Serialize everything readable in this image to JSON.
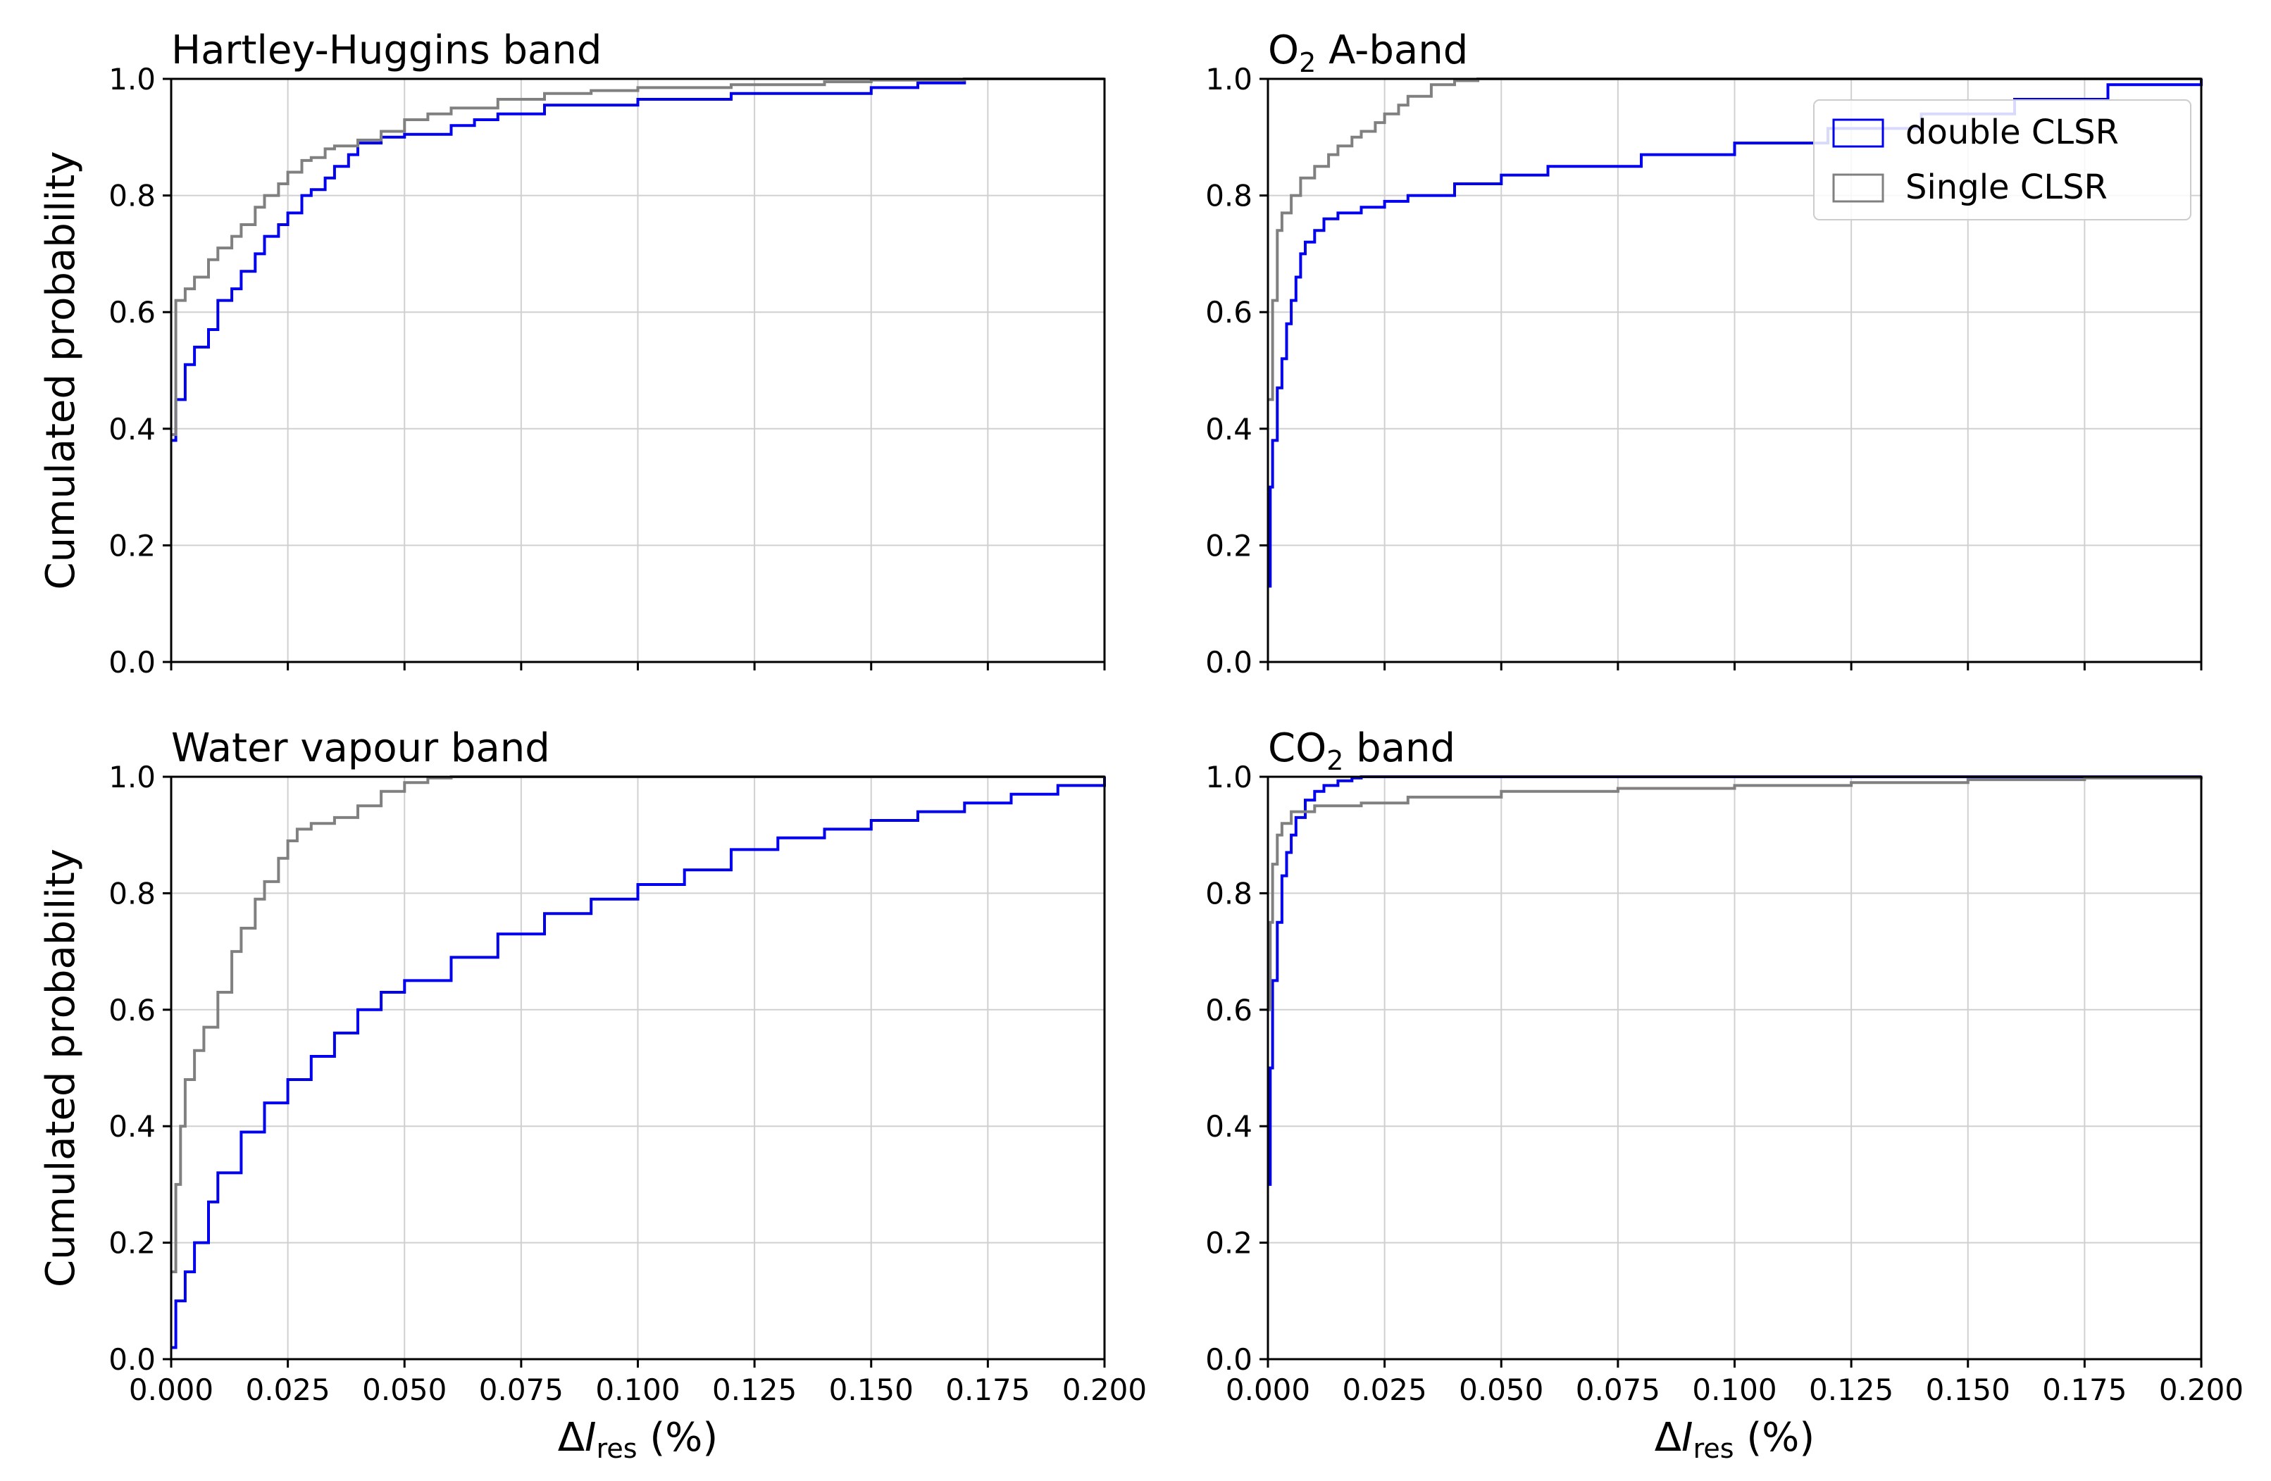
{
  "chart_data": [
    {
      "type": "line",
      "title_main": "Hartley-Huggins band",
      "title_sub": "",
      "title_rest": "",
      "xlabel": "",
      "ylabel": "Cumulated probability",
      "xlim": [
        0,
        0.2
      ],
      "ylim": [
        0,
        1
      ],
      "grid": true,
      "xticks": [
        "0.000",
        "0.025",
        "0.050",
        "0.075",
        "0.100",
        "0.125",
        "0.150",
        "0.175",
        "0.200"
      ],
      "yticks": [
        "0.0",
        "0.2",
        "0.4",
        "0.6",
        "0.8",
        "1.0"
      ],
      "series": [
        {
          "color": "#0000ee",
          "x": [
            0,
            0.001,
            0.003,
            0.005,
            0.008,
            0.01,
            0.013,
            0.015,
            0.018,
            0.02,
            0.023,
            0.025,
            0.028,
            0.03,
            0.033,
            0.035,
            0.038,
            0.04,
            0.045,
            0.05,
            0.06,
            0.065,
            0.07,
            0.08,
            0.1,
            0.12,
            0.15,
            0.16,
            0.17,
            0.2
          ],
          "y": [
            0.38,
            0.45,
            0.51,
            0.54,
            0.57,
            0.62,
            0.64,
            0.67,
            0.7,
            0.73,
            0.75,
            0.77,
            0.8,
            0.81,
            0.83,
            0.85,
            0.87,
            0.89,
            0.9,
            0.905,
            0.92,
            0.93,
            0.94,
            0.955,
            0.965,
            0.975,
            0.985,
            0.993,
            1.0,
            1.0
          ]
        },
        {
          "color": "#808080",
          "x": [
            0,
            0.001,
            0.003,
            0.005,
            0.008,
            0.01,
            0.013,
            0.015,
            0.018,
            0.02,
            0.023,
            0.025,
            0.028,
            0.03,
            0.033,
            0.035,
            0.04,
            0.045,
            0.05,
            0.055,
            0.06,
            0.07,
            0.08,
            0.09,
            0.1,
            0.12,
            0.14,
            0.15,
            0.17,
            0.2
          ],
          "y": [
            0.39,
            0.62,
            0.64,
            0.66,
            0.69,
            0.71,
            0.73,
            0.75,
            0.78,
            0.8,
            0.82,
            0.84,
            0.86,
            0.865,
            0.88,
            0.885,
            0.895,
            0.91,
            0.93,
            0.94,
            0.95,
            0.965,
            0.975,
            0.98,
            0.985,
            0.99,
            0.995,
            0.998,
            1.0,
            1.0
          ]
        }
      ]
    },
    {
      "type": "line",
      "title_main": "O",
      "title_sub": "2",
      "title_rest": " A-band",
      "xlabel": "",
      "ylabel": "",
      "xlim": [
        0,
        0.2
      ],
      "ylim": [
        0,
        1
      ],
      "grid": true,
      "legend": "top-right",
      "xticks": [
        "0.000",
        "0.025",
        "0.050",
        "0.075",
        "0.100",
        "0.125",
        "0.150",
        "0.175",
        "0.200"
      ],
      "yticks": [
        "0.0",
        "0.2",
        "0.4",
        "0.6",
        "0.8",
        "1.0"
      ],
      "series": [
        {
          "name": "double CLSR",
          "color": "#0000ee",
          "x": [
            0,
            0.0005,
            0.001,
            0.002,
            0.003,
            0.004,
            0.005,
            0.006,
            0.007,
            0.008,
            0.01,
            0.012,
            0.015,
            0.02,
            0.025,
            0.03,
            0.04,
            0.05,
            0.06,
            0.08,
            0.1,
            0.12,
            0.14,
            0.16,
            0.18,
            0.2
          ],
          "y": [
            0.13,
            0.3,
            0.38,
            0.47,
            0.52,
            0.58,
            0.62,
            0.66,
            0.7,
            0.72,
            0.74,
            0.76,
            0.77,
            0.78,
            0.79,
            0.8,
            0.82,
            0.835,
            0.85,
            0.87,
            0.89,
            0.915,
            0.94,
            0.965,
            0.99,
            1.0
          ]
        },
        {
          "name": "Single CLSR",
          "color": "#808080",
          "x": [
            0,
            0.001,
            0.002,
            0.003,
            0.005,
            0.007,
            0.01,
            0.013,
            0.015,
            0.018,
            0.02,
            0.023,
            0.025,
            0.028,
            0.03,
            0.035,
            0.04,
            0.045,
            0.2
          ],
          "y": [
            0.45,
            0.62,
            0.74,
            0.77,
            0.8,
            0.83,
            0.85,
            0.87,
            0.885,
            0.9,
            0.91,
            0.925,
            0.94,
            0.955,
            0.97,
            0.99,
            0.997,
            1.0,
            1.0
          ]
        }
      ]
    },
    {
      "type": "line",
      "title_main": "Water vapour band",
      "title_sub": "",
      "title_rest": "",
      "xlabel": "ΔI_res (%)",
      "ylabel": "Cumulated probability",
      "xlim": [
        0,
        0.2
      ],
      "ylim": [
        0,
        1
      ],
      "grid": true,
      "xticks": [
        "0.000",
        "0.025",
        "0.050",
        "0.075",
        "0.100",
        "0.125",
        "0.150",
        "0.175",
        "0.200"
      ],
      "yticks": [
        "0.0",
        "0.2",
        "0.4",
        "0.6",
        "0.8",
        "1.0"
      ],
      "series": [
        {
          "color": "#0000ee",
          "x": [
            0,
            0.001,
            0.003,
            0.005,
            0.008,
            0.01,
            0.015,
            0.02,
            0.025,
            0.03,
            0.035,
            0.04,
            0.045,
            0.05,
            0.06,
            0.07,
            0.08,
            0.09,
            0.1,
            0.11,
            0.12,
            0.13,
            0.14,
            0.15,
            0.16,
            0.17,
            0.18,
            0.19,
            0.2
          ],
          "y": [
            0.02,
            0.1,
            0.15,
            0.2,
            0.27,
            0.32,
            0.39,
            0.44,
            0.48,
            0.52,
            0.56,
            0.6,
            0.63,
            0.65,
            0.69,
            0.73,
            0.765,
            0.79,
            0.815,
            0.84,
            0.875,
            0.895,
            0.91,
            0.925,
            0.94,
            0.955,
            0.97,
            0.985,
            1.0
          ]
        },
        {
          "color": "#808080",
          "x": [
            0,
            0.001,
            0.002,
            0.003,
            0.005,
            0.007,
            0.01,
            0.013,
            0.015,
            0.018,
            0.02,
            0.023,
            0.025,
            0.027,
            0.03,
            0.035,
            0.04,
            0.045,
            0.05,
            0.055,
            0.06,
            0.2
          ],
          "y": [
            0.15,
            0.3,
            0.4,
            0.48,
            0.53,
            0.57,
            0.63,
            0.7,
            0.74,
            0.79,
            0.82,
            0.86,
            0.89,
            0.91,
            0.92,
            0.93,
            0.95,
            0.975,
            0.99,
            0.998,
            1.0,
            1.0
          ]
        }
      ]
    },
    {
      "type": "line",
      "title_main": "CO",
      "title_sub": "2",
      "title_rest": " band",
      "xlabel": "ΔI_res (%)",
      "ylabel": "",
      "xlim": [
        0,
        0.2
      ],
      "ylim": [
        0,
        1
      ],
      "grid": true,
      "xticks": [
        "0.000",
        "0.025",
        "0.050",
        "0.075",
        "0.100",
        "0.125",
        "0.150",
        "0.175",
        "0.200"
      ],
      "yticks": [
        "0.0",
        "0.2",
        "0.4",
        "0.6",
        "0.8",
        "1.0"
      ],
      "series": [
        {
          "color": "#0000ee",
          "x": [
            0,
            0.0005,
            0.001,
            0.002,
            0.003,
            0.004,
            0.005,
            0.006,
            0.008,
            0.01,
            0.012,
            0.015,
            0.018,
            0.02,
            0.2
          ],
          "y": [
            0.3,
            0.5,
            0.65,
            0.75,
            0.83,
            0.87,
            0.9,
            0.93,
            0.96,
            0.975,
            0.985,
            0.993,
            0.998,
            1.0,
            1.0
          ]
        },
        {
          "color": "#808080",
          "x": [
            0,
            0.0005,
            0.001,
            0.002,
            0.003,
            0.005,
            0.01,
            0.02,
            0.03,
            0.05,
            0.075,
            0.1,
            0.125,
            0.15,
            0.175,
            0.2
          ],
          "y": [
            0.6,
            0.75,
            0.85,
            0.9,
            0.92,
            0.94,
            0.95,
            0.955,
            0.965,
            0.975,
            0.98,
            0.985,
            0.99,
            0.995,
            0.998,
            1.0
          ]
        }
      ]
    }
  ]
}
